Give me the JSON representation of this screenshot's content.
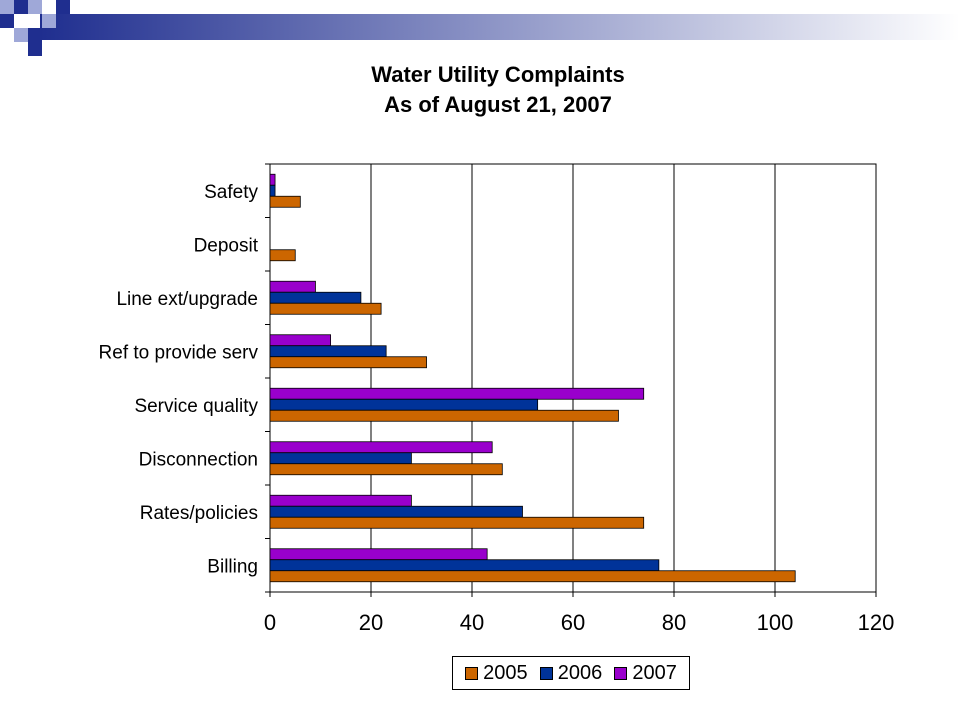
{
  "title_line1": "Water Utility Complaints",
  "title_line2": "As of August 21, 2007",
  "colors": {
    "2005": "#CC6600",
    "2006": "#003399",
    "2007": "#9900CC",
    "deco_blue": "#1F2E8F",
    "deco_light": "#9FA8D8"
  },
  "legend": [
    "2005",
    "2006",
    "2007"
  ],
  "chart_data": {
    "type": "bar",
    "orientation": "horizontal",
    "categories": [
      "Safety",
      "Deposit",
      "Line ext/upgrade",
      "Ref to provide serv",
      "Service quality",
      "Disconnection",
      "Rates/policies",
      "Billing"
    ],
    "series": [
      {
        "name": "2005",
        "values": [
          6,
          5,
          22,
          31,
          69,
          46,
          74,
          104
        ]
      },
      {
        "name": "2006",
        "values": [
          1,
          0,
          18,
          23,
          53,
          28,
          50,
          77
        ]
      },
      {
        "name": "2007",
        "values": [
          1,
          0,
          9,
          12,
          74,
          44,
          28,
          43
        ]
      }
    ],
    "xlim": [
      0,
      120
    ],
    "xticks": [
      "0",
      "20",
      "40",
      "60",
      "80",
      "100",
      "120"
    ],
    "grid": "vertical",
    "legend_position": "bottom"
  }
}
